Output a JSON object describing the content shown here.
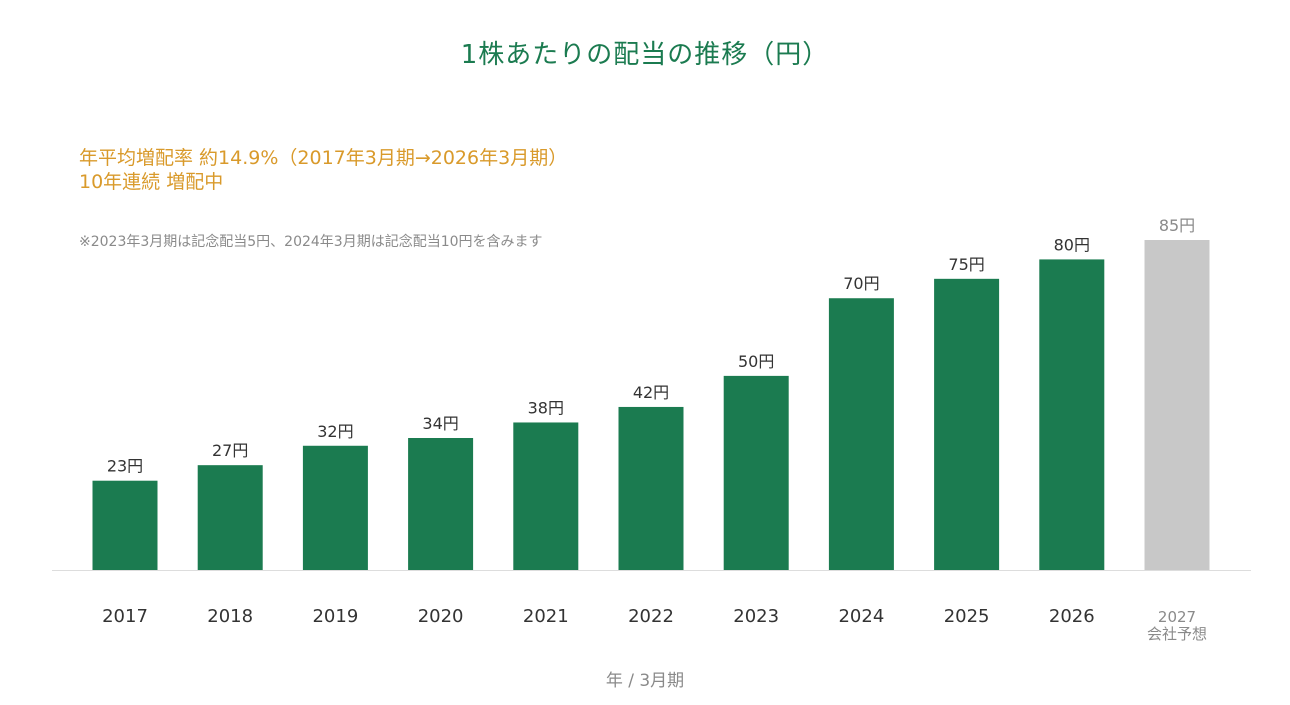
{
  "title": "1株あたりの配当の推移（円）",
  "highlight": {
    "line1": "年平均増配率 約14.9%（2017年3月期→2026年3月期）",
    "line2": "10年連続 増配中"
  },
  "note": "※2023年3月期は記念配当5円、2024年3月期は記念配当10円を含みます",
  "colors": {
    "title": "#1b7b50",
    "bar": "#1b7b50",
    "forecast_bar": "#c8c8c8",
    "highlight": "#d99a2b",
    "label": "#333333",
    "muted": "#8a8a8a",
    "baseline": "#dddddd"
  },
  "chart_data": {
    "type": "bar",
    "categories": [
      "2017",
      "2018",
      "2019",
      "2020",
      "2021",
      "2022",
      "2023",
      "2024",
      "2025",
      "2026",
      "2027"
    ],
    "category_sublabels": [
      "",
      "",
      "",
      "",
      "",
      "",
      "",
      "",
      "",
      "",
      "会社予想"
    ],
    "values": [
      23,
      27,
      32,
      34,
      38,
      42,
      50,
      70,
      75,
      80,
      85
    ],
    "value_labels": [
      "23円",
      "27円",
      "32円",
      "34円",
      "38円",
      "42円",
      "50円",
      "70円",
      "75円",
      "80円",
      "85円"
    ],
    "forecast": [
      false,
      false,
      false,
      false,
      false,
      false,
      false,
      false,
      false,
      false,
      true
    ],
    "xlabel": "年 / 3月期",
    "ylabel": "",
    "ylim": [
      0,
      85
    ],
    "grid": false
  }
}
